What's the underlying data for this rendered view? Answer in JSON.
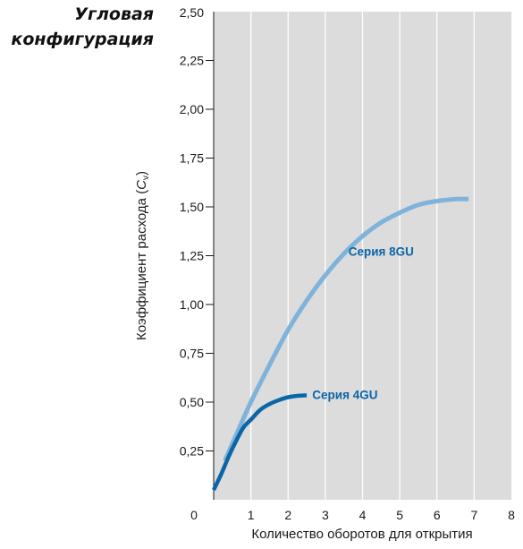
{
  "figure": {
    "title_line1": "Угловая",
    "title_line2": "конфигурация"
  },
  "colors": {
    "plot_background": "#dcdcdc",
    "grid": "#ffffff",
    "axis": "#1a1a1a",
    "series_8gu": "#7fb3da",
    "series_4gu": "#0a66a8",
    "label_text": "#0a66a8"
  },
  "chart_data": {
    "type": "line",
    "title": "Угловая конфигурация",
    "xlabel": "Количество оборотов для открытия",
    "ylabel_prefix": "Коэффициент расхода (",
    "ylabel_symbol": "C",
    "ylabel_subscript": "v",
    "ylabel_suffix": ")",
    "xlim": [
      0,
      8
    ],
    "ylim": [
      0,
      2.5
    ],
    "x_ticks": [
      {
        "value": 0,
        "label": "0"
      },
      {
        "value": 1,
        "label": "1"
      },
      {
        "value": 2,
        "label": "2"
      },
      {
        "value": 3,
        "label": "3"
      },
      {
        "value": 4,
        "label": "4"
      },
      {
        "value": 5,
        "label": "5"
      },
      {
        "value": 6,
        "label": "6"
      },
      {
        "value": 7,
        "label": "7"
      },
      {
        "value": 8,
        "label": "8"
      }
    ],
    "y_ticks": [
      {
        "value": 0.25,
        "label": "0,25"
      },
      {
        "value": 0.5,
        "label": "0,50"
      },
      {
        "value": 0.75,
        "label": "0,75"
      },
      {
        "value": 1.0,
        "label": "1,00"
      },
      {
        "value": 1.25,
        "label": "1,25"
      },
      {
        "value": 1.5,
        "label": "1,50"
      },
      {
        "value": 1.75,
        "label": "1,75"
      },
      {
        "value": 2.0,
        "label": "2,00"
      },
      {
        "value": 2.25,
        "label": "2,25"
      },
      {
        "value": 2.5,
        "label": "2,50"
      }
    ],
    "grid": "vertical",
    "series": [
      {
        "name": "Серия 8GU",
        "color": "#7fb3da",
        "points": [
          [
            0.3,
            0.2
          ],
          [
            0.6,
            0.33
          ],
          [
            1.0,
            0.5
          ],
          [
            1.5,
            0.69
          ],
          [
            2.0,
            0.87
          ],
          [
            2.5,
            1.02
          ],
          [
            3.0,
            1.15
          ],
          [
            3.5,
            1.26
          ],
          [
            4.0,
            1.35
          ],
          [
            4.5,
            1.42
          ],
          [
            5.0,
            1.47
          ],
          [
            5.5,
            1.51
          ],
          [
            6.0,
            1.53
          ],
          [
            6.5,
            1.54
          ],
          [
            6.85,
            1.54
          ]
        ],
        "label_at": [
          4.5,
          1.25
        ]
      },
      {
        "name": "Серия 4GU",
        "color": "#0a66a8",
        "points": [
          [
            0.0,
            0.05
          ],
          [
            0.2,
            0.13
          ],
          [
            0.4,
            0.22
          ],
          [
            0.6,
            0.3
          ],
          [
            0.8,
            0.37
          ],
          [
            1.0,
            0.41
          ],
          [
            1.25,
            0.46
          ],
          [
            1.5,
            0.49
          ],
          [
            1.75,
            0.51
          ],
          [
            2.0,
            0.525
          ],
          [
            2.25,
            0.532
          ],
          [
            2.5,
            0.535
          ]
        ],
        "label_at": [
          2.65,
          0.515
        ]
      }
    ]
  }
}
